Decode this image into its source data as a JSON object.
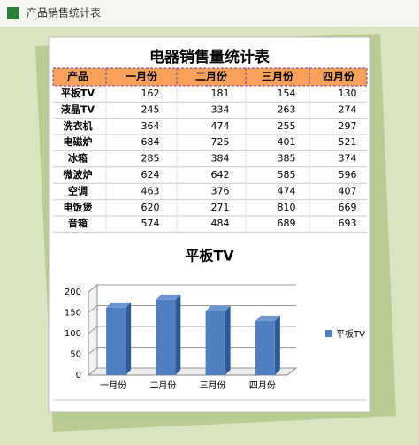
{
  "header": {
    "title": "产品销售统计表"
  },
  "table": {
    "title": "电器销售量统计表",
    "header": [
      "产品",
      "一月份",
      "二月份",
      "三月份",
      "四月份"
    ],
    "rows": [
      [
        "平板TV",
        162,
        181,
        154,
        130
      ],
      [
        "液晶TV",
        245,
        334,
        263,
        274
      ],
      [
        "洗衣机",
        364,
        474,
        255,
        297
      ],
      [
        "电磁炉",
        684,
        725,
        401,
        521
      ],
      [
        "冰箱",
        285,
        384,
        385,
        374
      ],
      [
        "微波炉",
        624,
        642,
        585,
        596
      ],
      [
        "空调",
        463,
        376,
        474,
        407
      ],
      [
        "电饭煲",
        620,
        271,
        810,
        669
      ],
      [
        "音箱",
        574,
        484,
        689,
        693
      ]
    ]
  },
  "chart_data": {
    "type": "bar",
    "title": "平板TV",
    "categories": [
      "一月份",
      "二月份",
      "三月份",
      "四月份"
    ],
    "series": [
      {
        "name": "平板TV",
        "color": "#4f7fc0",
        "values": [
          162,
          181,
          154,
          130
        ]
      }
    ],
    "ylim": [
      0,
      200
    ],
    "yticks": [
      0,
      50,
      100,
      150,
      200
    ],
    "grid": true,
    "legend": "right"
  }
}
